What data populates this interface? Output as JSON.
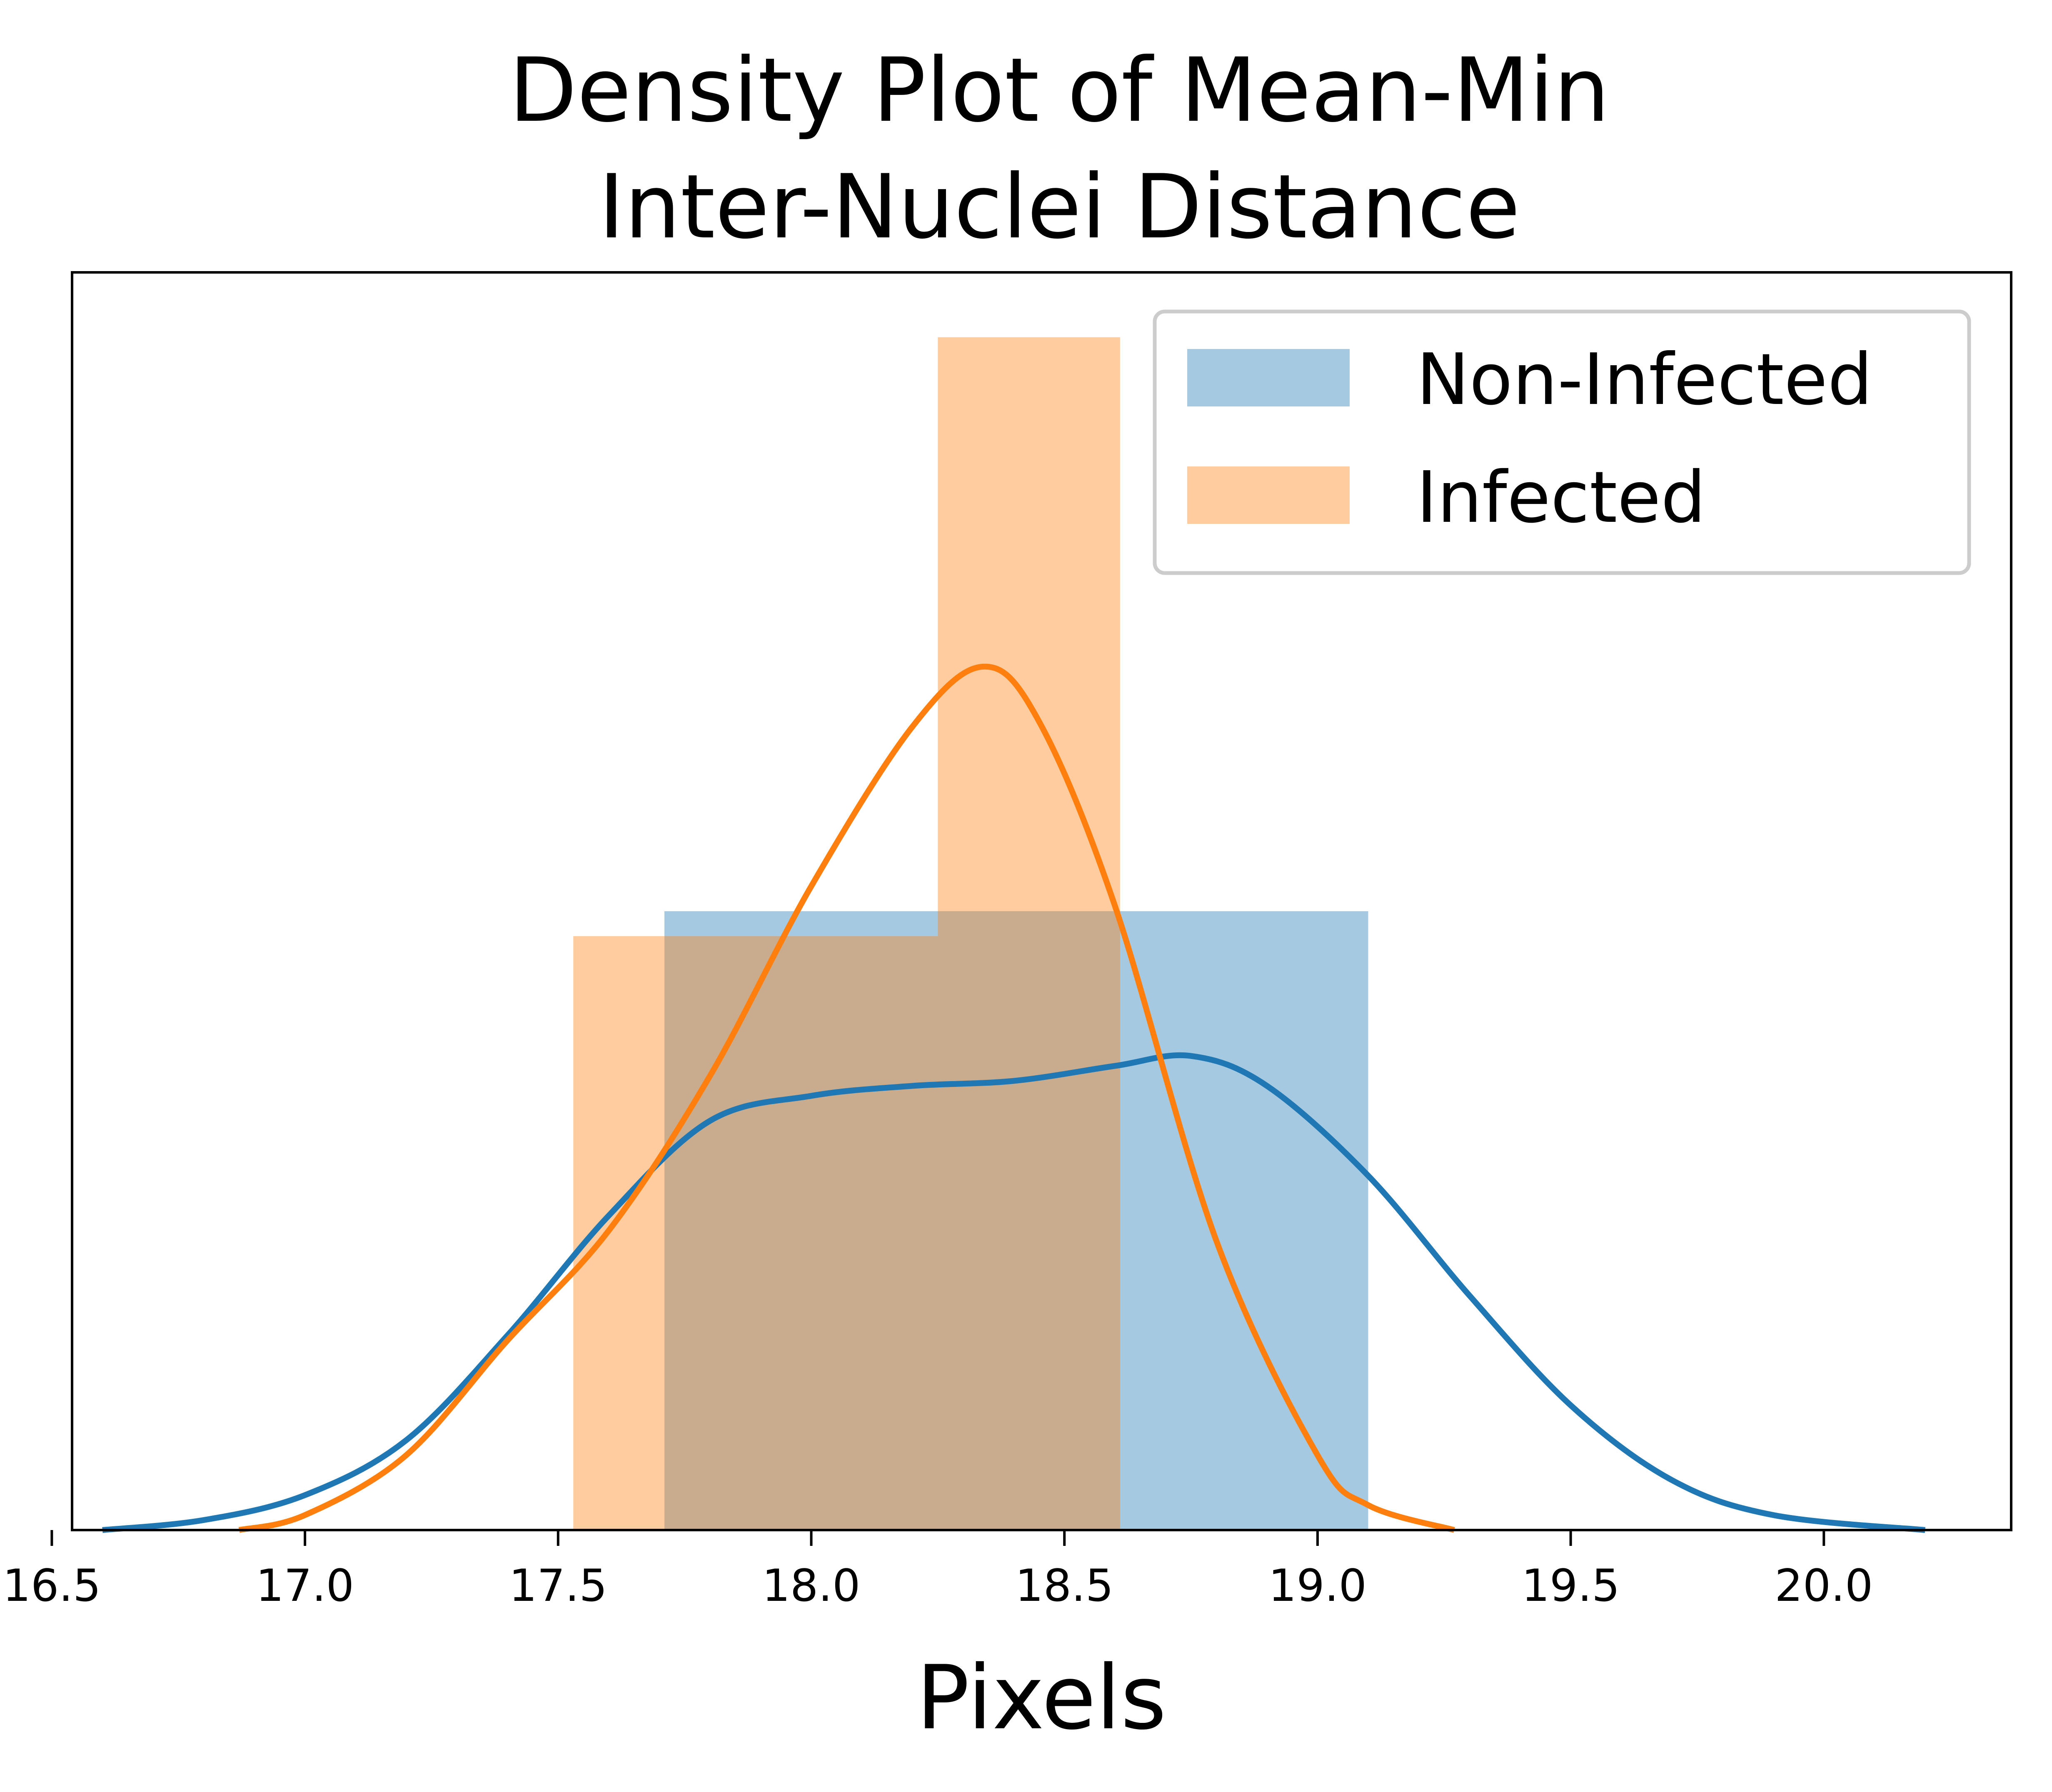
{
  "chart_data": {
    "type": "bar",
    "title_lines": [
      "Density Plot of Mean-Min",
      "Inter-Nuclei Distance"
    ],
    "xlabel": "Pixels",
    "ylabel": "",
    "xlim": [
      16.54,
      20.37
    ],
    "ylim": [
      0,
      2.52
    ],
    "xticks": [
      16.5,
      17.0,
      17.5,
      18.0,
      18.5,
      19.0,
      19.5,
      20.0
    ],
    "xtick_labels": [
      "16.5",
      "17.0",
      "17.5",
      "18.0",
      "18.5",
      "19.0",
      "19.5",
      "20.0"
    ],
    "y_ticks_visible": false,
    "grid": false,
    "legend_position": "top-right",
    "histograms": [
      {
        "name": "Non-Infected",
        "color": "#1f77b4",
        "alpha": 0.4,
        "bins": [
          {
            "x0": 17.71,
            "x1": 18.405,
            "height": 1.24
          },
          {
            "x0": 18.405,
            "x1": 19.1,
            "height": 1.24
          }
        ]
      },
      {
        "name": "Infected",
        "color": "#ff7f0e",
        "alpha": 0.4,
        "bins": [
          {
            "x0": 17.53,
            "x1": 18.25,
            "height": 1.19
          },
          {
            "x0": 18.25,
            "x1": 18.61,
            "height": 2.39
          }
        ]
      }
    ],
    "series": [
      {
        "name": "Non-Infected",
        "color": "#1f77b4",
        "x": [
          16.6,
          16.8,
          17.0,
          17.2,
          17.4,
          17.6,
          17.8,
          18.0,
          18.2,
          18.4,
          18.6,
          18.75,
          18.9,
          19.1,
          19.3,
          19.5,
          19.7,
          19.9,
          20.2
        ],
        "y": [
          0.0,
          0.02,
          0.07,
          0.18,
          0.39,
          0.63,
          0.82,
          0.87,
          0.89,
          0.9,
          0.93,
          0.95,
          0.89,
          0.71,
          0.47,
          0.25,
          0.1,
          0.03,
          0.0
        ]
      },
      {
        "name": "Infected",
        "color": "#ff7f0e",
        "x": [
          16.87,
          17.0,
          17.2,
          17.4,
          17.6,
          17.8,
          18.0,
          18.2,
          18.34,
          18.45,
          18.6,
          18.8,
          19.0,
          19.1,
          19.27
        ],
        "y": [
          0.0,
          0.03,
          0.15,
          0.38,
          0.6,
          0.91,
          1.29,
          1.61,
          1.73,
          1.62,
          1.25,
          0.58,
          0.15,
          0.05,
          0.0
        ]
      }
    ]
  }
}
